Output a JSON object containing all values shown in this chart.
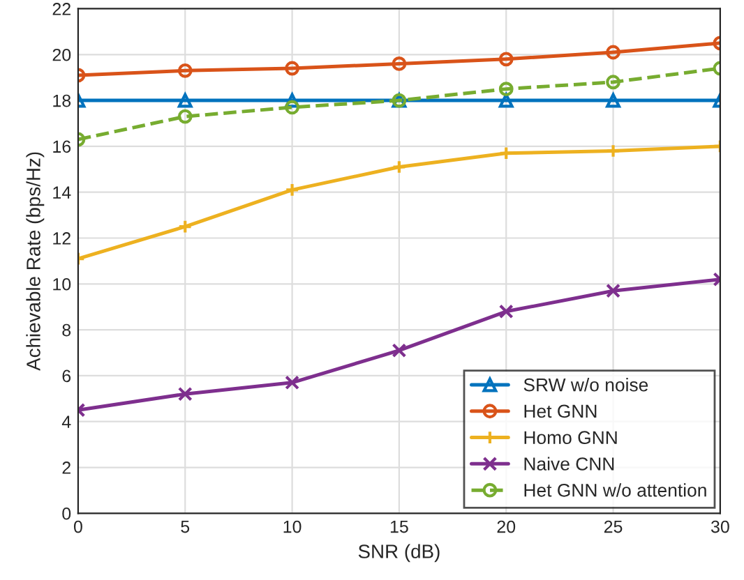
{
  "chart_data": {
    "type": "line",
    "xlabel": "SNR (dB)",
    "ylabel": "Achievable Rate (bps/Hz)",
    "x": [
      0,
      5,
      10,
      15,
      20,
      25,
      30
    ],
    "series": [
      {
        "name": "SRW w/o noise",
        "color": "#0072bd",
        "marker": "triangle",
        "line_style": "solid",
        "values": [
          18,
          18,
          18,
          18,
          18,
          18,
          18
        ]
      },
      {
        "name": "Het GNN",
        "color": "#d95319",
        "marker": "circle",
        "line_style": "solid",
        "values": [
          19.1,
          19.3,
          19.4,
          19.6,
          19.8,
          20.1,
          20.5
        ]
      },
      {
        "name": "Homo GNN",
        "color": "#edb120",
        "marker": "cross",
        "line_style": "solid",
        "values": [
          11.1,
          12.5,
          14.1,
          15.1,
          15.7,
          15.8,
          16.0
        ]
      },
      {
        "name": "Naive CNN",
        "color": "#7e2f8e",
        "marker": "x",
        "line_style": "solid",
        "values": [
          4.5,
          5.2,
          5.7,
          7.1,
          8.8,
          9.7,
          10.2
        ]
      },
      {
        "name": "Het GNN w/o attention",
        "color": "#77ac30",
        "marker": "circle",
        "line_style": "dashed",
        "values": [
          16.3,
          17.3,
          17.7,
          18.0,
          18.5,
          18.8,
          19.4
        ]
      }
    ],
    "xlim": [
      0,
      30
    ],
    "xticks": [
      0,
      5,
      10,
      15,
      20,
      25,
      30
    ],
    "ylim": [
      0,
      22
    ],
    "yticks": [
      0,
      2,
      4,
      6,
      8,
      10,
      12,
      14,
      16,
      18,
      20,
      22
    ],
    "grid": true,
    "legend": "bottom right"
  }
}
